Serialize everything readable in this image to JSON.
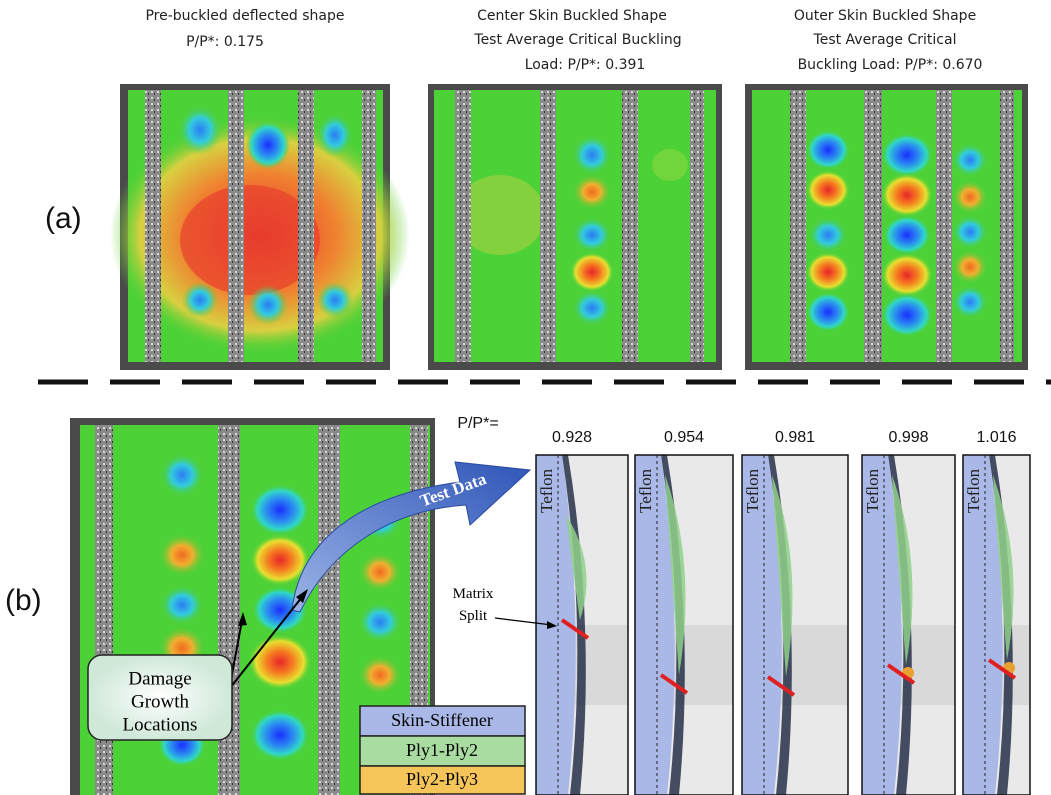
{
  "part_a": {
    "label": "(a)",
    "panels": [
      {
        "lines": [
          "Pre-buckled deflected shape",
          "P/P*: 0.175"
        ]
      },
      {
        "lines": [
          "Center Skin Buckled Shape",
          "Test Average Critical Buckling",
          "Load:   P/P*: 0.391"
        ]
      },
      {
        "lines": [
          "Outer Skin Buckled Shape",
          "Test Average Critical",
          "Buckling Load:   P/P*: 0.670"
        ]
      }
    ]
  },
  "part_b": {
    "label": "(b)",
    "load_label": "P/P*=",
    "frames": [
      {
        "load": 0.928,
        "label": "Teflon"
      },
      {
        "load": 0.954,
        "label": "Teflon"
      },
      {
        "load": 0.981,
        "label": "Teflon"
      },
      {
        "load": 0.998,
        "label": "Teflon"
      },
      {
        "load": 1.016,
        "label": "Teflon"
      }
    ],
    "arrow_label": "Test Data",
    "matrix_split": [
      "Matrix",
      "Split"
    ],
    "damage_callout": [
      "Damage",
      "Growth",
      "Locations"
    ],
    "legend": [
      "Skin-Stiffener",
      "Ply1-Ply2",
      "Ply2-Ply3"
    ]
  }
}
